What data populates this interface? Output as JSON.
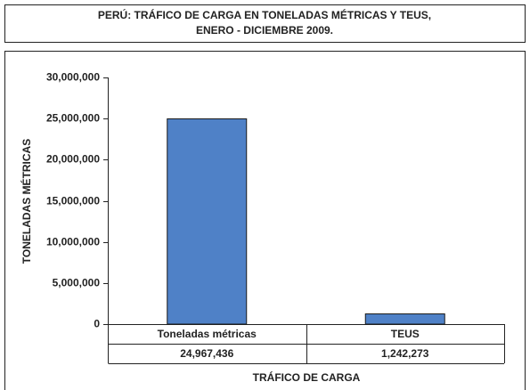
{
  "chart_data": {
    "type": "bar",
    "title": [
      "PERÚ: TRÁFICO DE CARGA EN TONELADAS MÉTRICAS Y TEUS,",
      "ENERO - DICIEMBRE 2009."
    ],
    "categories": [
      "Toneladas métricas",
      "TEUS"
    ],
    "values": [
      24967436,
      1242273
    ],
    "value_labels": [
      "24,967,436",
      "1,242,273"
    ],
    "color": "#4f81c7",
    "ylabel": "TONELADAS MÉTRICAS",
    "xlabel": "TRÁFICO DE CARGA",
    "ylim": [
      0,
      30000000
    ],
    "yticks": [
      {
        "value": 0,
        "label": "0"
      },
      {
        "value": 5000000,
        "label": "5,000,000"
      },
      {
        "value": 10000000,
        "label": "10,000,000"
      },
      {
        "value": 15000000,
        "label": "15,000,000"
      },
      {
        "value": 20000000,
        "label": "20,000,000"
      },
      {
        "value": 25000000,
        "label": "25,000,000"
      },
      {
        "value": 30000000,
        "label": "30,000,000"
      }
    ],
    "grid": false
  }
}
